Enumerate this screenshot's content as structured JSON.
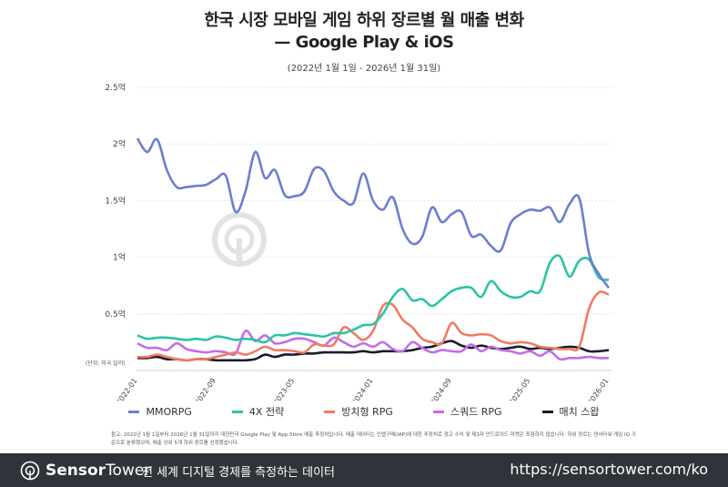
{
  "header": {
    "title_line1": "한국 시장 모바일 게임 하위 장르별 월 매출 변화",
    "title_line2": "— Google Play & iOS",
    "subtitle": "(2022년 1월 1일 - 2026년 1월 31일)"
  },
  "watermark": "SensorTower",
  "chart_data": {
    "type": "line",
    "unit_label": "(단위: 미국 달러)",
    "ylim": [
      0,
      2.5
    ],
    "yticks": [
      {
        "v": 0.5,
        "label": "0.5억"
      },
      {
        "v": 1,
        "label": "1억"
      },
      {
        "v": 1.5,
        "label": "1.5억"
      },
      {
        "v": 2,
        "label": "2억"
      },
      {
        "v": 2.5,
        "label": "2.5억"
      }
    ],
    "x_start": "2022-01",
    "x_end": "2026-01",
    "xticks": [
      {
        "m": 0,
        "label": "2022-01"
      },
      {
        "m": 8,
        "label": "2022-09"
      },
      {
        "m": 16,
        "label": "2023-05"
      },
      {
        "m": 24,
        "label": "2024-01"
      },
      {
        "m": 32,
        "label": "2024-09"
      },
      {
        "m": 40,
        "label": "2025-05"
      },
      {
        "m": 48,
        "label": "2026-01"
      }
    ],
    "grid": true,
    "legend_position": "bottom",
    "series": [
      {
        "name": "MMORPG",
        "color": "#6b7fd0",
        "values": [
          2.05,
          1.93,
          2.04,
          1.77,
          1.62,
          1.62,
          1.63,
          1.64,
          1.69,
          1.72,
          1.4,
          1.58,
          1.93,
          1.7,
          1.77,
          1.55,
          1.54,
          1.58,
          1.78,
          1.76,
          1.58,
          1.5,
          1.48,
          1.74,
          1.5,
          1.42,
          1.53,
          1.25,
          1.12,
          1.18,
          1.44,
          1.31,
          1.38,
          1.4,
          1.19,
          1.2,
          1.1,
          1.06,
          1.3,
          1.38,
          1.42,
          1.41,
          1.44,
          1.31,
          1.47,
          1.52,
          1.03,
          0.85,
          0.73
        ]
      },
      {
        "name": "4X 전략",
        "color": "#2bc4a6",
        "values": [
          0.31,
          0.28,
          0.29,
          0.29,
          0.28,
          0.27,
          0.28,
          0.27,
          0.3,
          0.29,
          0.27,
          0.28,
          0.27,
          0.25,
          0.31,
          0.31,
          0.33,
          0.32,
          0.31,
          0.3,
          0.33,
          0.33,
          0.36,
          0.4,
          0.41,
          0.5,
          0.65,
          0.72,
          0.62,
          0.63,
          0.57,
          0.63,
          0.7,
          0.73,
          0.73,
          0.65,
          0.79,
          0.7,
          0.65,
          0.65,
          0.7,
          0.7,
          0.95,
          1.01,
          0.83,
          0.97,
          0.98,
          0.82,
          0.8
        ]
      },
      {
        "name": "방치형 RPG",
        "color": "#f07b62",
        "values": [
          0.12,
          0.12,
          0.14,
          0.12,
          0.1,
          0.09,
          0.1,
          0.1,
          0.12,
          0.14,
          0.16,
          0.14,
          0.17,
          0.21,
          0.18,
          0.18,
          0.17,
          0.16,
          0.23,
          0.22,
          0.23,
          0.38,
          0.33,
          0.27,
          0.35,
          0.57,
          0.58,
          0.45,
          0.38,
          0.28,
          0.25,
          0.24,
          0.42,
          0.33,
          0.31,
          0.32,
          0.31,
          0.26,
          0.24,
          0.25,
          0.24,
          0.21,
          0.2,
          0.19,
          0.19,
          0.21,
          0.55,
          0.69,
          0.67
        ]
      },
      {
        "name": "스쿼드 RPG",
        "color": "#c36ce8",
        "values": [
          0.24,
          0.2,
          0.2,
          0.18,
          0.24,
          0.19,
          0.17,
          0.16,
          0.17,
          0.16,
          0.15,
          0.35,
          0.26,
          0.31,
          0.24,
          0.25,
          0.28,
          0.28,
          0.25,
          0.22,
          0.29,
          0.25,
          0.21,
          0.24,
          0.21,
          0.25,
          0.19,
          0.17,
          0.25,
          0.2,
          0.16,
          0.18,
          0.17,
          0.17,
          0.23,
          0.17,
          0.21,
          0.18,
          0.17,
          0.15,
          0.17,
          0.13,
          0.17,
          0.1,
          0.11,
          0.11,
          0.12,
          0.11,
          0.11
        ]
      },
      {
        "name": "매치 스왑",
        "color": "#1b1b2e",
        "values": [
          0.11,
          0.11,
          0.12,
          0.1,
          0.1,
          0.09,
          0.1,
          0.1,
          0.09,
          0.09,
          0.09,
          0.09,
          0.1,
          0.14,
          0.12,
          0.14,
          0.14,
          0.15,
          0.15,
          0.16,
          0.16,
          0.16,
          0.16,
          0.17,
          0.16,
          0.17,
          0.17,
          0.17,
          0.18,
          0.2,
          0.21,
          0.24,
          0.26,
          0.22,
          0.2,
          0.22,
          0.2,
          0.19,
          0.2,
          0.21,
          0.19,
          0.2,
          0.19,
          0.2,
          0.21,
          0.2,
          0.17,
          0.17,
          0.18
        ]
      }
    ]
  },
  "note": "참고: 2022년 1월 1일부터 2026년 1월 31일까지 대한민국 Google Play 및 App Store 매출 추정치입니다. 매출 데이터는 인앱구매(IAP)에 대한 추정치로 광고 수익 및 제3자 안드로이드 마켓은 포함하지 않습니다. 하위 장르는 센서타워 게임 IQ 기준으로 분류했으며, 매출 상위 5개 하위 장르를 선정했습니다.",
  "footer": {
    "brand_bold": "Sensor",
    "brand_light": "Tower",
    "tagline": "전 세계 디지털 경제를 측정하는 데이터",
    "url": "https://sensortower.com/ko"
  }
}
